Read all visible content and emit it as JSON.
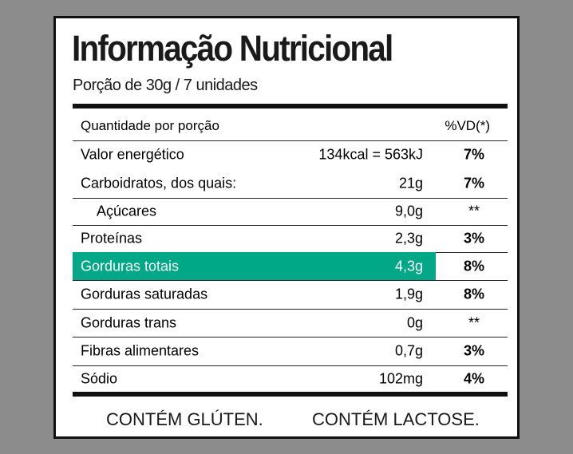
{
  "header": {
    "title": "Informação Nutricional",
    "serving": "Porção de 30g / 7 unidades"
  },
  "table": {
    "columns": [
      "Quantidade por porção",
      "%VD(*)"
    ],
    "rows": [
      [
        "Valor energético",
        "134kcal = 563kJ",
        "7%"
      ],
      [
        "Carboidratos, dos quais:",
        "21g",
        "7%"
      ],
      [
        "Açúcares",
        "9,0g",
        "**"
      ],
      [
        "Proteínas",
        "2,3g",
        "3%"
      ],
      [
        "Gorduras totais",
        "4,3g",
        "8%"
      ],
      [
        "Gorduras saturadas",
        "1,9g",
        "8%"
      ],
      [
        "Gorduras trans",
        "0g",
        "**"
      ],
      [
        "Fibras alimentares",
        "0,7g",
        "3%"
      ],
      [
        "Sódio",
        "102mg",
        "4%"
      ]
    ]
  },
  "footer": [
    "CONTÉM GLÚTEN.",
    "CONTÉM LACTOSE."
  ]
}
